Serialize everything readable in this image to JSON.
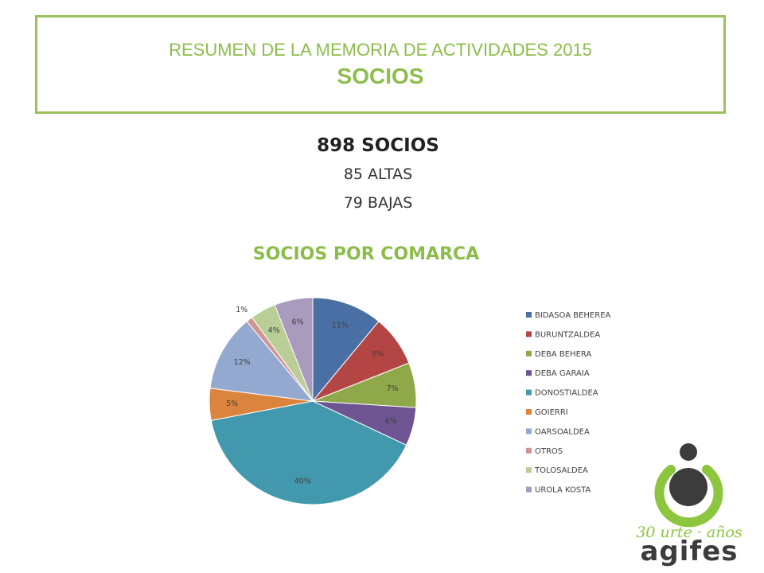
{
  "header": {
    "line1": "RESUMEN DE LA MEMORIA DE ACTIVIDADES 2015",
    "line2": "SOCIOS"
  },
  "stats": {
    "total": "898 SOCIOS",
    "altas": "85 ALTAS",
    "bajas": "79 BAJAS"
  },
  "logo": {
    "tagline": "30 urte · años",
    "brand": "agifes",
    "colors": {
      "green": "#8cc63f",
      "dark": "#3c3c3c"
    }
  },
  "chart_data": {
    "type": "pie",
    "title": "SOCIOS POR COMARCA",
    "legend_position": "right",
    "categories": [
      "BIDASOA BEHEREA",
      "BURUNTZALDEA",
      "DEBA BEHERA",
      "DEBA GARAIA",
      "DONOSTIALDEA",
      "GOIERRI",
      "OARSOALDEA",
      "OTROS",
      "TOLOSALDEA",
      "UROLA KOSTA"
    ],
    "values": [
      11,
      8,
      7,
      6,
      40,
      5,
      12,
      1,
      4,
      6
    ],
    "labels": [
      "11%",
      "8%",
      "7%",
      "6%",
      "40%",
      "5%",
      "12%",
      "1%",
      "4%",
      "6%"
    ],
    "colors": [
      "#4a6fa5",
      "#b34644",
      "#8fa94a",
      "#6e5592",
      "#4299ad",
      "#db843d",
      "#93a9cf",
      "#d09493",
      "#b9cd96",
      "#a99bbd"
    ]
  }
}
